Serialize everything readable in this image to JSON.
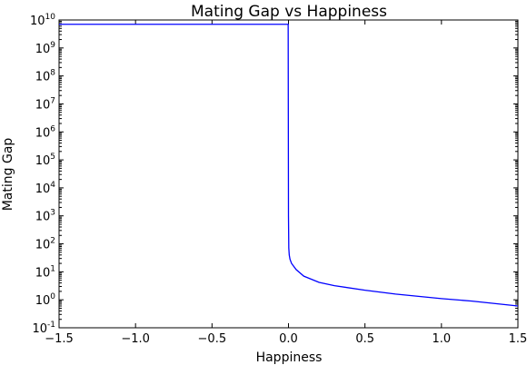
{
  "chart_data": {
    "type": "line",
    "title": "Mating Gap vs Happiness",
    "xlabel": "Happiness",
    "ylabel": "Mating Gap",
    "xlim": [
      -1.5,
      1.5
    ],
    "ylim": [
      0.1,
      10000000000
    ],
    "yscale": "log",
    "grid": false,
    "legend": "none",
    "x_ticks": [
      {
        "value": -1.5,
        "label": "−1.5"
      },
      {
        "value": -1.0,
        "label": "−1.0"
      },
      {
        "value": -0.5,
        "label": "−0.5"
      },
      {
        "value": 0.0,
        "label": "0.0"
      },
      {
        "value": 0.5,
        "label": "0.5"
      },
      {
        "value": 1.0,
        "label": "1.0"
      },
      {
        "value": 1.5,
        "label": "1.5"
      }
    ],
    "y_ticks": [
      {
        "value": 0.1,
        "base": "10",
        "exp": "-1"
      },
      {
        "value": 1,
        "base": "10",
        "exp": "0"
      },
      {
        "value": 10,
        "base": "10",
        "exp": "1"
      },
      {
        "value": 100,
        "base": "10",
        "exp": "2"
      },
      {
        "value": 1000,
        "base": "10",
        "exp": "3"
      },
      {
        "value": 10000,
        "base": "10",
        "exp": "4"
      },
      {
        "value": 100000,
        "base": "10",
        "exp": "5"
      },
      {
        "value": 1000000,
        "base": "10",
        "exp": "6"
      },
      {
        "value": 10000000,
        "base": "10",
        "exp": "7"
      },
      {
        "value": 100000000,
        "base": "10",
        "exp": "8"
      },
      {
        "value": 1000000000,
        "base": "10",
        "exp": "9"
      },
      {
        "value": 10000000000,
        "base": "10",
        "exp": "10"
      }
    ],
    "series": [
      {
        "color": "#0000ff",
        "x": [
          -1.5,
          -0.5,
          -0.01,
          -0.002,
          0.0,
          0.002,
          0.005,
          0.01,
          0.02,
          0.05,
          0.1,
          0.2,
          0.3,
          0.5,
          0.7,
          1.0,
          1.2,
          1.5
        ],
        "y": [
          7000000000,
          7000000000,
          7000000000,
          7000000000,
          1000,
          70,
          40,
          28,
          20,
          12,
          7,
          4.2,
          3.2,
          2.2,
          1.6,
          1.1,
          0.9,
          0.6
        ]
      }
    ]
  }
}
